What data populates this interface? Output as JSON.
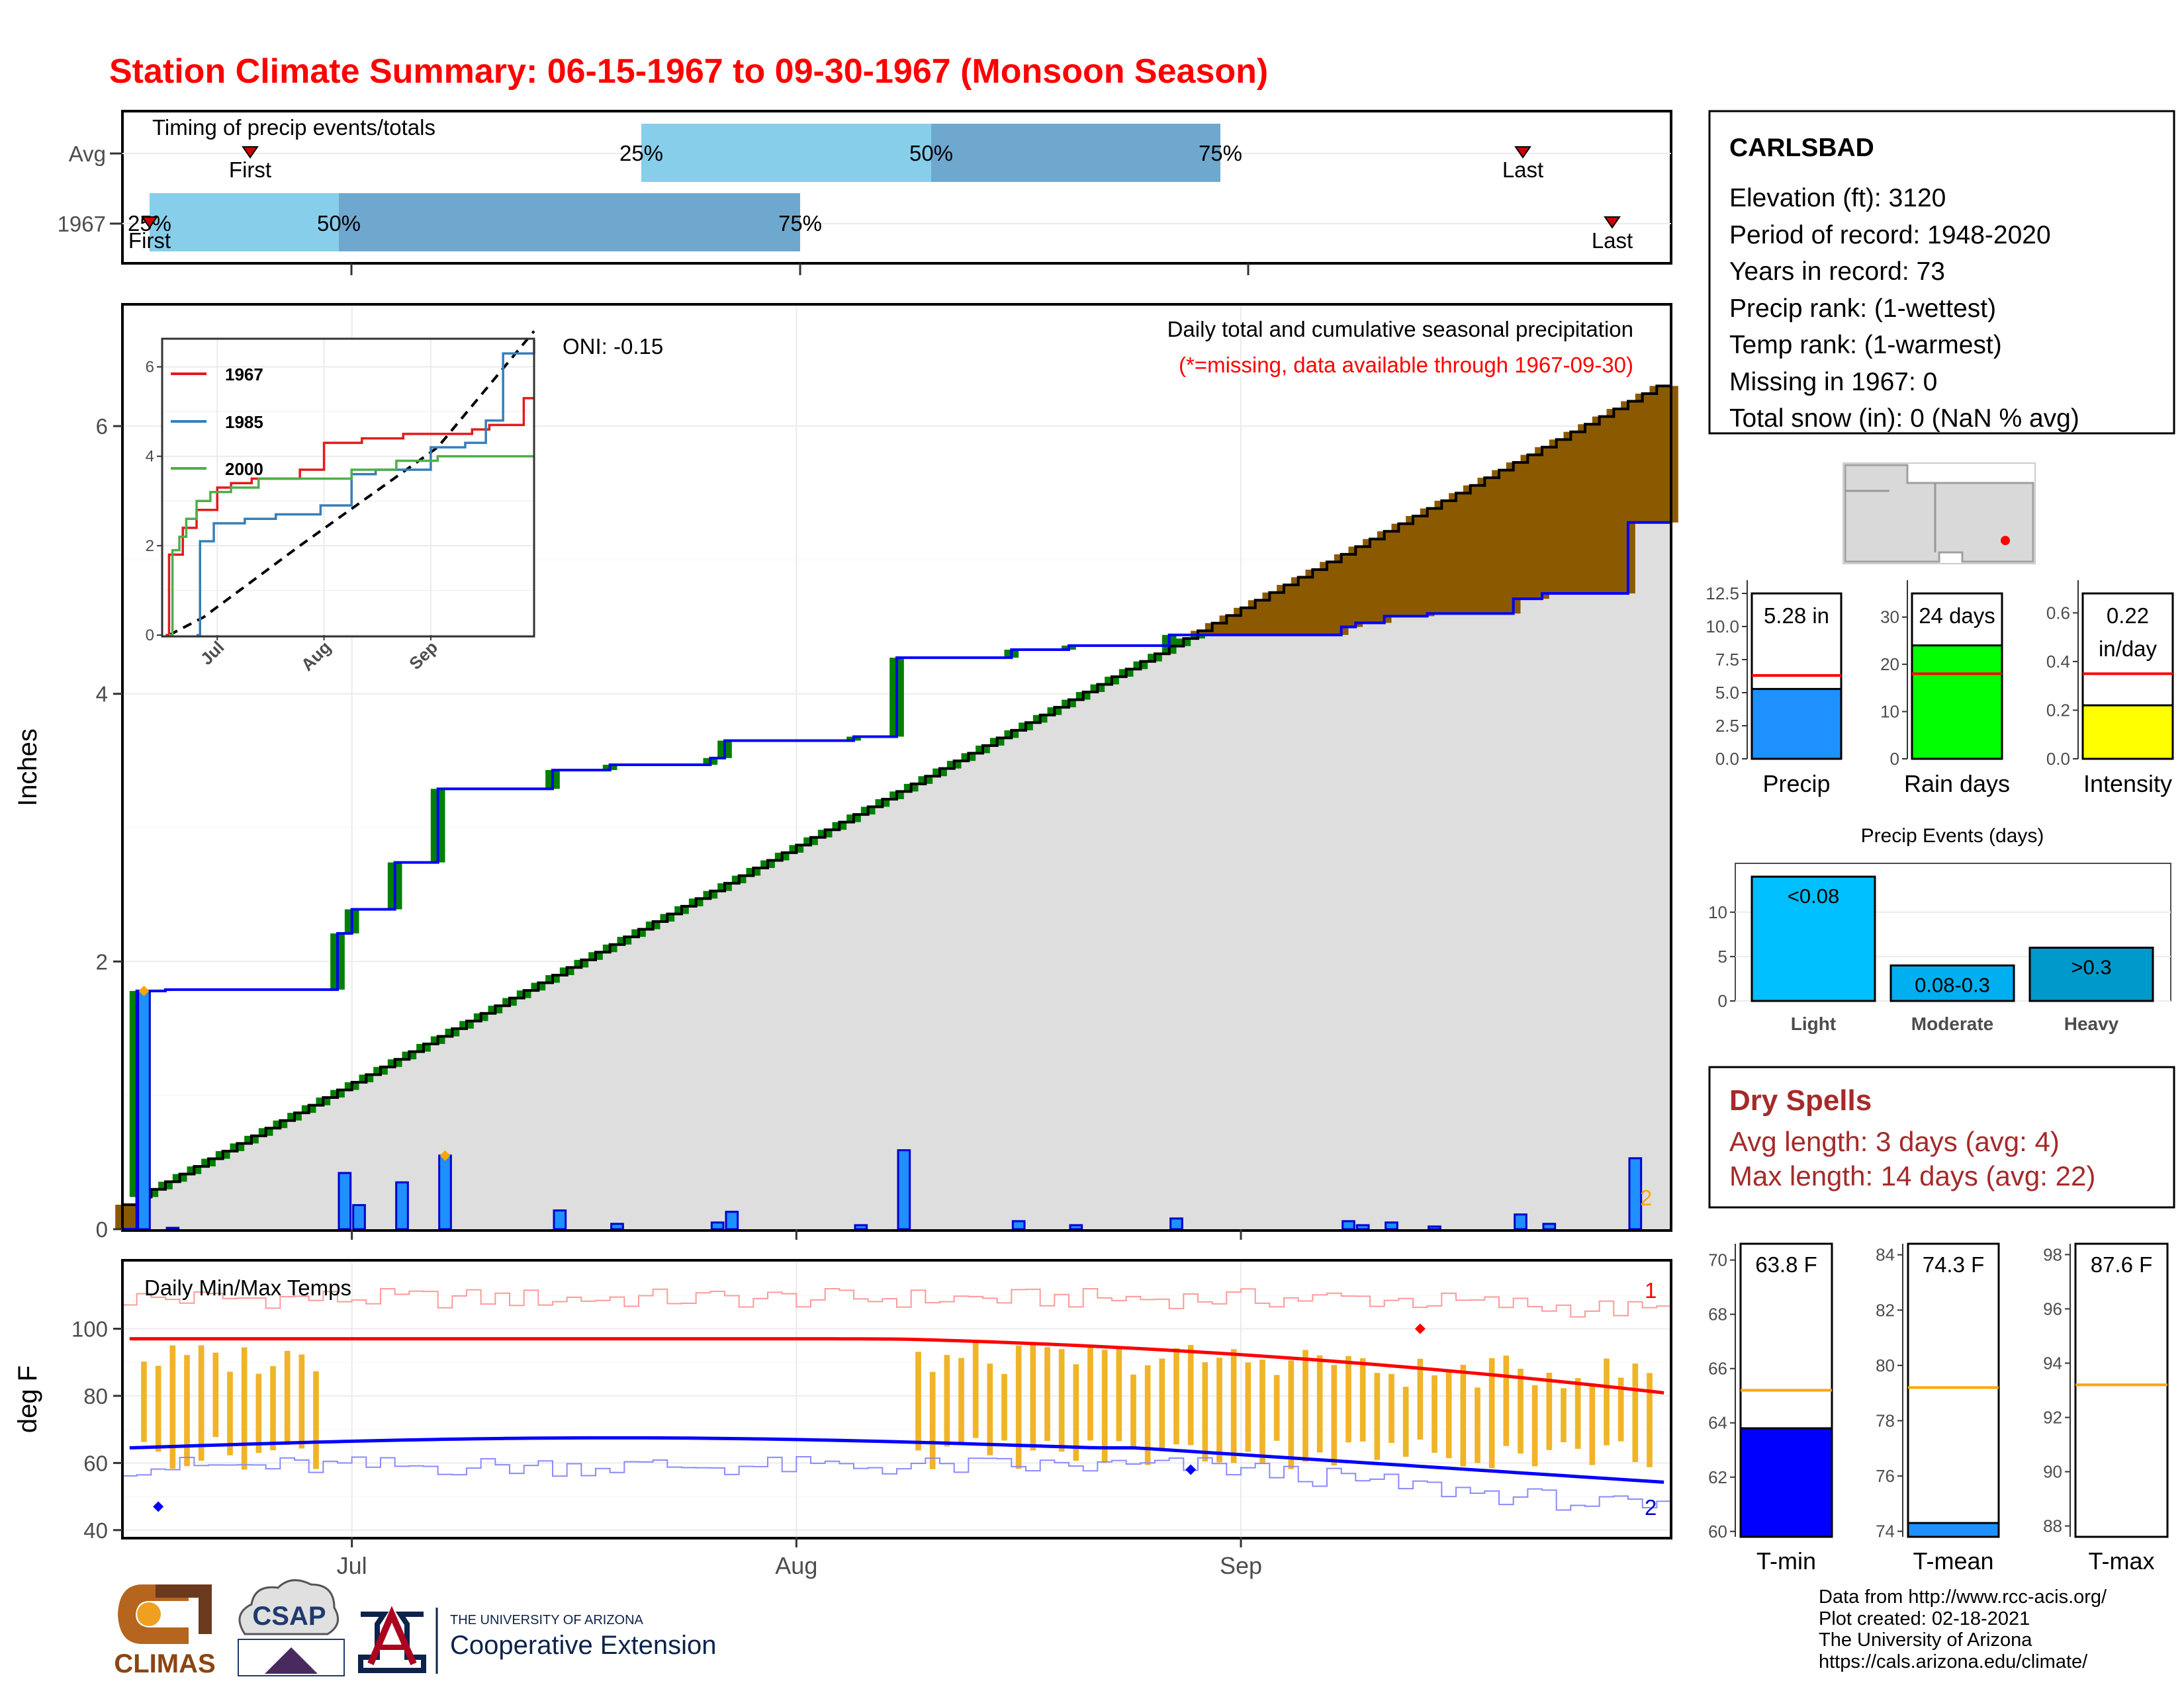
{
  "page_title": "Station Climate Summary: 06-15-1967 to 09-30-1967 (Monsoon Season)",
  "timing": {
    "title": "Timing of precip events/totals",
    "rows": [
      {
        "label": "Avg",
        "first_label": "First",
        "last_label": "Last",
        "p25": "25%",
        "p50": "50%",
        "p75": "75%"
      },
      {
        "label": "1967",
        "first_label": "First",
        "last_label": "Last",
        "p25": "25%",
        "p50": "50%",
        "p75": "75%"
      }
    ]
  },
  "main_chart": {
    "ylabel": "Inches",
    "oni": "ONI: -0.15",
    "subtitle": "Daily total and cumulative seasonal precipitation",
    "missing_note": "(*=missing, data available through 1967-09-30)",
    "yticks": [
      "0",
      "2",
      "4",
      "6"
    ],
    "missing_count": "2"
  },
  "inset": {
    "legend": [
      "1967",
      "1985",
      "2000"
    ],
    "yticks": [
      "0",
      "2",
      "4",
      "6"
    ],
    "xticks": [
      "Jul",
      "Aug",
      "Sep"
    ]
  },
  "temp_chart": {
    "title": "Daily Min/Max Temps",
    "ylabel": "deg F",
    "yticks": [
      "40",
      "60",
      "80",
      "100"
    ],
    "xticks": [
      "Jul",
      "Aug",
      "Sep"
    ],
    "max_missing": "1",
    "min_missing": "2"
  },
  "station": {
    "name": "CARLSBAD",
    "lines": [
      "Elevation (ft): 3120",
      "Period of record: 1948-2020",
      "Years in record: 73",
      "Precip rank:  (1-wettest)",
      "Temp rank:  (1-warmest)",
      "Missing in 1967: 0",
      "Total snow (in): 0 (NaN % avg)"
    ]
  },
  "mini_bars": [
    {
      "label": "Precip",
      "value_text": "5.28 in",
      "value": 5.28,
      "avg": 6.3,
      "yticks": [
        "0.0",
        "2.5",
        "5.0",
        "7.5",
        "10.0",
        "12.5"
      ],
      "ymax": 12.5,
      "color": "#1e90ff"
    },
    {
      "label": "Rain days",
      "value_text": "24 days",
      "value": 24,
      "avg": 18,
      "yticks": [
        "0",
        "10",
        "20",
        "30"
      ],
      "ymax": 35,
      "color": "#00ff00"
    },
    {
      "label": "Intensity",
      "value_text": "0.22",
      "value_text2": "in/day",
      "value": 0.22,
      "avg": 0.35,
      "yticks": [
        "0.0",
        "0.2",
        "0.4",
        "0.6"
      ],
      "ymax": 0.68,
      "color": "#ffff00"
    }
  ],
  "events": {
    "title": "Precip Events (days)",
    "yticks": [
      "0",
      "5",
      "10"
    ],
    "bars": [
      {
        "category": "Light",
        "label": "<0.08",
        "value": 14,
        "color": "#00bfff"
      },
      {
        "category": "Moderate",
        "label": "0.08-0.3",
        "value": 4,
        "color": "#00aff0"
      },
      {
        "category": "Heavy",
        "label": ">0.3",
        "value": 6,
        "color": "#0099cc"
      }
    ]
  },
  "dry_spells": {
    "title": "Dry Spells",
    "avg_line": "Avg length: 3 days (avg: 4)",
    "max_line": "Max length: 14 days (avg: 22)"
  },
  "temp_bars": [
    {
      "label": "T-min",
      "value_text": "63.8 F",
      "value": 63.8,
      "avg": 65.2,
      "ymin": 59.8,
      "ymax": 70.6,
      "yticks": [
        "60",
        "62",
        "64",
        "66",
        "68",
        "70"
      ],
      "color": "#0000ff"
    },
    {
      "label": "T-mean",
      "value_text": "74.3 F",
      "value": 74.3,
      "avg": 79.2,
      "ymin": 73.8,
      "ymax": 84.4,
      "yticks": [
        "74",
        "76",
        "78",
        "80",
        "82",
        "84"
      ],
      "color": "#1e90ff"
    },
    {
      "label": "T-max",
      "value_text": "87.6 F",
      "value": 87.6,
      "avg": 93.2,
      "ymin": 87.6,
      "ymax": 98.4,
      "yticks": [
        "88",
        "90",
        "92",
        "94",
        "96",
        "98"
      ],
      "color": "#87ceeb"
    }
  ],
  "footer": {
    "lines": [
      "Data from http://www.rcc-acis.org/",
      "Plot created: 02-18-2021",
      "The University of Arizona",
      "https://cals.arizona.edu/climate/"
    ],
    "climas": "CLIMAS",
    "csap": "CSAP",
    "ua_top": "THE UNIVERSITY OF ARIZONA",
    "ua_bottom": "Cooperative Extension"
  },
  "colors": {
    "title": "#ff0000",
    "cum_precip": "#008000",
    "excess": "#8b5a00",
    "avg_fill": "#dedede",
    "daily_bar": "#1e90ff",
    "dry": "#a52a2a"
  },
  "chart_data": [
    {
      "type": "bar",
      "title": "Daily total and cumulative seasonal precipitation",
      "ylabel": "Inches",
      "ylim": [
        0,
        6.9
      ],
      "x_range": [
        "1967-06-15",
        "1967-09-30"
      ],
      "daily_precip": [
        {
          "date": "1967-06-16",
          "value": 1.78
        },
        {
          "date": "1967-06-18",
          "value": 0.01
        },
        {
          "date": "1967-06-30",
          "value": 0.42
        },
        {
          "date": "1967-07-01",
          "value": 0.18
        },
        {
          "date": "1967-07-04",
          "value": 0.35
        },
        {
          "date": "1967-07-07",
          "value": 0.55
        },
        {
          "date": "1967-07-15",
          "value": 0.14
        },
        {
          "date": "1967-07-19",
          "value": 0.04
        },
        {
          "date": "1967-07-26",
          "value": 0.05
        },
        {
          "date": "1967-07-27",
          "value": 0.13
        },
        {
          "date": "1967-08-05",
          "value": 0.03
        },
        {
          "date": "1967-08-08",
          "value": 0.59
        },
        {
          "date": "1967-08-16",
          "value": 0.06
        },
        {
          "date": "1967-08-20",
          "value": 0.03
        },
        {
          "date": "1967-08-27",
          "value": 0.08
        },
        {
          "date": "1967-09-08",
          "value": 0.06
        },
        {
          "date": "1967-09-09",
          "value": 0.03
        },
        {
          "date": "1967-09-11",
          "value": 0.05
        },
        {
          "date": "1967-09-14",
          "value": 0.02
        },
        {
          "date": "1967-09-20",
          "value": 0.11
        },
        {
          "date": "1967-09-22",
          "value": 0.04
        },
        {
          "date": "1967-09-28",
          "value": 0.53
        }
      ],
      "cumulative_1967_final": 5.28,
      "average_cumulative_final": 6.3
    },
    {
      "type": "line",
      "title": "",
      "x": [
        "Jul",
        "Aug",
        "Sep"
      ],
      "ylim": [
        0,
        6.6
      ],
      "series": [
        {
          "name": "1967"
        },
        {
          "name": "1985"
        },
        {
          "name": "2000"
        }
      ]
    },
    {
      "type": "line",
      "title": "Daily Min/Max Temps",
      "ylabel": "deg F",
      "ylim": [
        38,
        120
      ],
      "x_range": [
        "1967-06-15",
        "1967-09-30"
      ],
      "max_extreme_marker": {
        "date": "1967-09-13",
        "value": 100
      },
      "min_extreme_marker": {
        "date": "1967-06-17",
        "value": 47
      }
    },
    {
      "type": "bar",
      "categories": [
        "Precip",
        "Rain days",
        "Intensity"
      ],
      "values": [
        5.28,
        24,
        0.22
      ]
    },
    {
      "type": "bar",
      "title": "Precip Events (days)",
      "categories": [
        "Light",
        "Moderate",
        "Heavy"
      ],
      "values": [
        14,
        4,
        6
      ]
    },
    {
      "type": "bar",
      "categories": [
        "T-min",
        "T-mean",
        "T-max"
      ],
      "values": [
        63.8,
        74.3,
        87.6
      ]
    }
  ]
}
